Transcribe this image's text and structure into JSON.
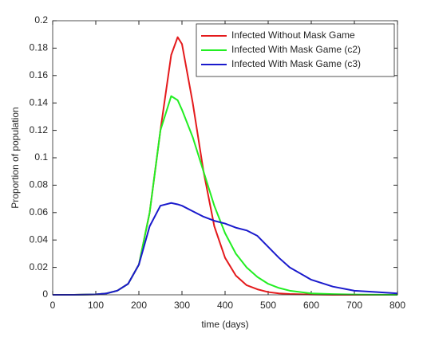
{
  "chart_data": {
    "type": "line",
    "xlabel": "time (days)",
    "ylabel": "Proportion of population",
    "x": [
      0,
      50,
      100,
      125,
      150,
      175,
      200,
      225,
      250,
      275,
      290,
      300,
      325,
      350,
      375,
      400,
      425,
      450,
      475,
      500,
      525,
      550,
      600,
      650,
      700,
      750,
      800
    ],
    "series": [
      {
        "name": "Infected Without Mask Game",
        "color": "#e41a1c",
        "values": [
          0,
          0,
          0.0003,
          0.001,
          0.003,
          0.008,
          0.022,
          0.06,
          0.12,
          0.175,
          0.188,
          0.183,
          0.14,
          0.09,
          0.05,
          0.027,
          0.014,
          0.007,
          0.004,
          0.002,
          0.001,
          0.0006,
          0.0002,
          0,
          0,
          0,
          0
        ]
      },
      {
        "name": "Infected With Mask Game (c2)",
        "color": "#22ee22",
        "values": [
          0,
          0,
          0.0003,
          0.001,
          0.003,
          0.008,
          0.022,
          0.06,
          0.12,
          0.145,
          0.142,
          0.135,
          0.115,
          0.09,
          0.065,
          0.045,
          0.03,
          0.02,
          0.013,
          0.008,
          0.005,
          0.003,
          0.001,
          0.0005,
          0.0002,
          0.0001,
          0
        ]
      },
      {
        "name": "Infected With Mask Game (c3)",
        "color": "#1a1acc",
        "values": [
          0,
          0,
          0.0003,
          0.001,
          0.003,
          0.008,
          0.022,
          0.05,
          0.065,
          0.067,
          0.066,
          0.065,
          0.061,
          0.057,
          0.054,
          0.052,
          0.049,
          0.047,
          0.043,
          0.035,
          0.027,
          0.02,
          0.011,
          0.006,
          0.003,
          0.002,
          0.001
        ]
      }
    ],
    "xlim": [
      0,
      800
    ],
    "xticks": [
      0,
      100,
      200,
      300,
      400,
      500,
      600,
      700,
      800
    ],
    "ylim": [
      0,
      0.2
    ],
    "yticks": [
      0,
      0.02,
      0.04,
      0.06,
      0.08,
      0.1,
      0.12,
      0.14,
      0.16,
      0.18,
      0.2
    ],
    "grid": false,
    "legend": "upper right"
  }
}
